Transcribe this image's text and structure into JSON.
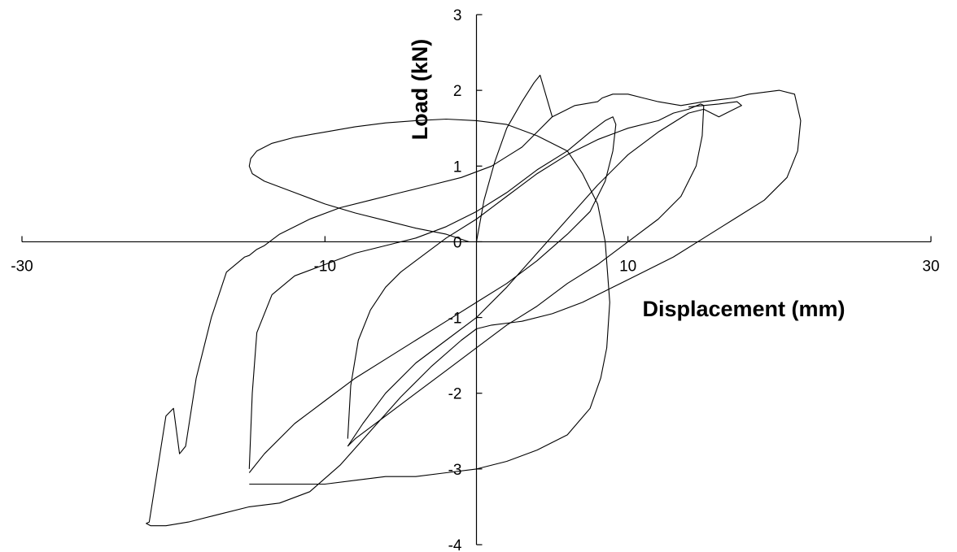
{
  "chart_data": {
    "type": "line",
    "xlabel": "Displacement (mm)",
    "ylabel": "Load (kN)",
    "xlim": [
      -30,
      30
    ],
    "ylim": [
      -4,
      3
    ],
    "x_ticks": [
      -30,
      -10,
      10,
      30
    ],
    "y_ticks": [
      -4,
      -3,
      -2,
      -1,
      0,
      1,
      2,
      3
    ],
    "grid": false,
    "legend": false,
    "series": [
      {
        "x": [
          0.0,
          0.5,
          1.2,
          2.0,
          3.0,
          3.8,
          4.2,
          5.0,
          5.5,
          6.5,
          8.0,
          8.3,
          9.0,
          10.0,
          11.0,
          12.0,
          13.5,
          15.0,
          17.0,
          18.0,
          20.0,
          21.0,
          21.4,
          21.2,
          20.5,
          19.0,
          17.0,
          15.0,
          13.0,
          11.0,
          9.0,
          7.0,
          5.0,
          3.0,
          1.0,
          0.0,
          -1.0,
          -3.0,
          -5.0,
          -7.0,
          -9.0,
          -11.0,
          -13.0,
          -15.0,
          -17.0,
          -19.0,
          -20.5,
          -21.5,
          -21.8,
          -21.6,
          -20.5,
          -20.0,
          -19.6,
          -19.4,
          -19.2,
          -18.5,
          -17.5,
          -16.5,
          -15.3,
          -15.0,
          -14.5,
          -14.0,
          -13.0,
          -11.0,
          -9.0,
          -7.0,
          -5.0,
          -3.0,
          -1.0,
          1.0,
          3.0,
          4.0,
          5.0,
          5.5
        ],
        "y": [
          0.0,
          0.55,
          1.05,
          1.5,
          1.85,
          2.1,
          2.2,
          1.65,
          1.7,
          1.8,
          1.85,
          1.9,
          1.95,
          1.95,
          1.9,
          1.85,
          1.8,
          1.85,
          1.9,
          1.95,
          2.0,
          1.95,
          1.6,
          1.2,
          0.85,
          0.55,
          0.3,
          0.05,
          -0.2,
          -0.4,
          -0.6,
          -0.8,
          -0.95,
          -1.05,
          -1.1,
          -1.15,
          -1.3,
          -1.65,
          -2.05,
          -2.5,
          -2.95,
          -3.3,
          -3.45,
          -3.5,
          -3.6,
          -3.7,
          -3.75,
          -3.75,
          -3.72,
          -3.7,
          -2.3,
          -2.2,
          -2.8,
          -2.75,
          -2.7,
          -1.8,
          -1.0,
          -0.4,
          -0.2,
          -0.18,
          -0.1,
          -0.05,
          0.1,
          0.3,
          0.45,
          0.55,
          0.65,
          0.75,
          0.85,
          1.0,
          1.25,
          1.45,
          1.65,
          1.7
        ]
      },
      {
        "x": [
          -0.5,
          -2.0,
          -4.0,
          -6.0,
          -8.0,
          -10.0,
          -12.0,
          -14.0,
          -14.8,
          -15.0,
          -14.9,
          -14.5,
          -13.5,
          -12.0,
          -10.0,
          -8.0,
          -6.0,
          -4.0,
          -2.0,
          0.0,
          2.0,
          4.0,
          6.0,
          7.0,
          8.0,
          8.5,
          8.8,
          8.6,
          8.2,
          7.5,
          6.0,
          4.0,
          2.0,
          0.0,
          -2.0,
          -4.0,
          -6.0,
          -8.0,
          -10.0,
          -12.0,
          -14.0,
          -15.0
        ],
        "y": [
          0.0,
          0.1,
          0.18,
          0.28,
          0.38,
          0.5,
          0.65,
          0.8,
          0.9,
          1.0,
          1.1,
          1.2,
          1.3,
          1.38,
          1.45,
          1.52,
          1.57,
          1.6,
          1.62,
          1.6,
          1.55,
          1.4,
          1.2,
          0.9,
          0.5,
          0.0,
          -0.8,
          -1.4,
          -1.8,
          -2.2,
          -2.55,
          -2.75,
          -2.9,
          -3.0,
          -3.05,
          -3.1,
          -3.1,
          -3.15,
          -3.2,
          -3.2,
          -3.2,
          -3.2
        ]
      },
      {
        "x": [
          -15.0,
          -14.8,
          -14.5,
          -13.5,
          -12.0,
          -10.0,
          -8.0,
          -6.0,
          -4.0,
          -2.0,
          0.0,
          2.0,
          4.0,
          6.0,
          7.5,
          8.5,
          9.0,
          9.2,
          9.0,
          8.5,
          7.5,
          6.0,
          4.0,
          2.0,
          0.0,
          -2.0,
          -4.0,
          -6.0,
          -8.0,
          -10.0,
          -12.0,
          -14.0,
          -15.0
        ],
        "y": [
          -3.0,
          -2.0,
          -1.2,
          -0.7,
          -0.45,
          -0.3,
          -0.15,
          -0.05,
          0.05,
          0.2,
          0.4,
          0.65,
          0.95,
          1.2,
          1.45,
          1.6,
          1.65,
          1.55,
          1.2,
          0.8,
          0.4,
          0.1,
          -0.25,
          -0.55,
          -0.8,
          -1.05,
          -1.3,
          -1.55,
          -1.8,
          -2.1,
          -2.4,
          -2.8,
          -3.05
        ]
      },
      {
        "x": [
          -8.5,
          -8.3,
          -7.8,
          -7.0,
          -6.0,
          -5.0,
          -4.0,
          -3.0,
          -2.0,
          0.0,
          2.0,
          4.0,
          6.0,
          8.0,
          10.0,
          12.0,
          13.0,
          14.0,
          14.8,
          15.0,
          14.9,
          14.5,
          13.5,
          12.0,
          10.0,
          8.0,
          6.0,
          4.0,
          2.0,
          0.0,
          -2.0,
          -4.0,
          -6.0,
          -8.0,
          -8.5
        ],
        "y": [
          -2.6,
          -1.9,
          -1.3,
          -0.9,
          -0.6,
          -0.4,
          -0.25,
          -0.1,
          0.05,
          0.3,
          0.6,
          0.9,
          1.15,
          1.35,
          1.5,
          1.6,
          1.7,
          1.75,
          1.82,
          1.8,
          1.4,
          1.0,
          0.6,
          0.3,
          0.0,
          -0.3,
          -0.55,
          -0.85,
          -1.1,
          -1.4,
          -1.7,
          -2.0,
          -2.3,
          -2.6,
          -2.7
        ]
      },
      {
        "x": [
          -8.5,
          -7.5,
          -6.0,
          -4.0,
          -2.0,
          0.0,
          2.0,
          4.0,
          6.0,
          8.0,
          10.0,
          12.0,
          14.0,
          15.0,
          16.0,
          17.0,
          17.5,
          17.2,
          16.0,
          14.0
        ],
        "y": [
          -2.7,
          -2.4,
          -2.0,
          -1.6,
          -1.3,
          -1.0,
          -0.6,
          -0.15,
          0.3,
          0.75,
          1.15,
          1.45,
          1.7,
          1.75,
          1.65,
          1.75,
          1.8,
          1.85,
          1.82,
          1.78
        ]
      }
    ]
  }
}
